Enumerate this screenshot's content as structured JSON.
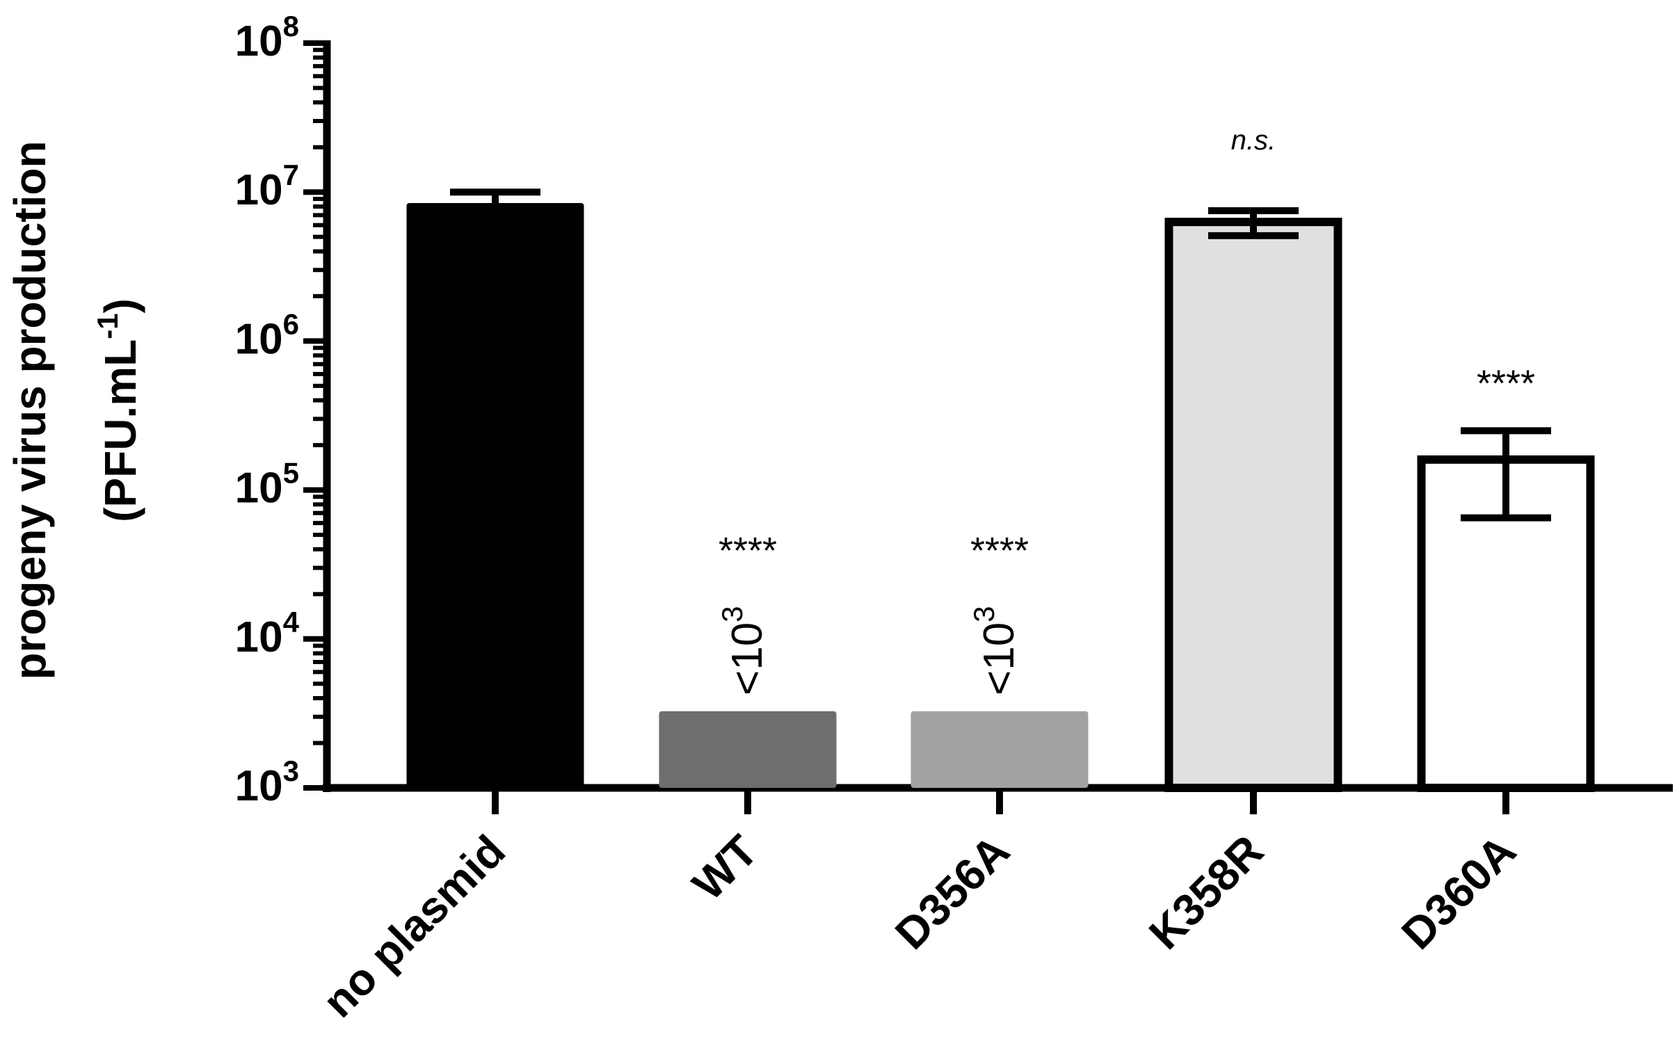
{
  "chart_data": {
    "type": "bar",
    "title": "",
    "ylabel_line1": "progeny virus production",
    "ylabel_line2_main": "(PFU.mL",
    "ylabel_line2_sup": "-1",
    "ylabel_line2_end": ")",
    "y_scale": "log10",
    "ylim": [
      1000,
      100000000
    ],
    "y_ticks": [
      {
        "base": "10",
        "exp": "3"
      },
      {
        "base": "10",
        "exp": "4"
      },
      {
        "base": "10",
        "exp": "5"
      },
      {
        "base": "10",
        "exp": "6"
      },
      {
        "base": "10",
        "exp": "7"
      },
      {
        "base": "10",
        "exp": "8"
      }
    ],
    "categories": [
      "no plasmid",
      "WT",
      "D356A",
      "K358R",
      "D360A"
    ],
    "bars": [
      {
        "label": "no plasmid",
        "value": 8000000,
        "err_low": 8000000,
        "err_high": 10000000,
        "fill": "#000000",
        "stroke": "#000000",
        "significance": "",
        "note_main": "",
        "note_sup": ""
      },
      {
        "label": "WT",
        "value": 3100,
        "fill": "#6e6e6e",
        "stroke": "#6e6e6e",
        "significance": "****",
        "note_main": "<10",
        "note_sup": "3"
      },
      {
        "label": "D356A",
        "value": 3100,
        "fill": "#a2a2a2",
        "stroke": "#a2a2a2",
        "significance": "****",
        "note_main": "<10",
        "note_sup": "3"
      },
      {
        "label": "K358R",
        "value": 6300000,
        "err_low": 5100000,
        "err_high": 7500000,
        "fill": "#e0e0e0",
        "stroke": "#000000",
        "significance": "n.s.",
        "note_main": "",
        "note_sup": ""
      },
      {
        "label": "D360A",
        "value": 160000,
        "err_low": 65000,
        "err_high": 250000,
        "fill": "#ffffff",
        "stroke": "#000000",
        "significance": "****",
        "note_main": "",
        "note_sup": ""
      }
    ],
    "grid": false,
    "legend": "none"
  }
}
